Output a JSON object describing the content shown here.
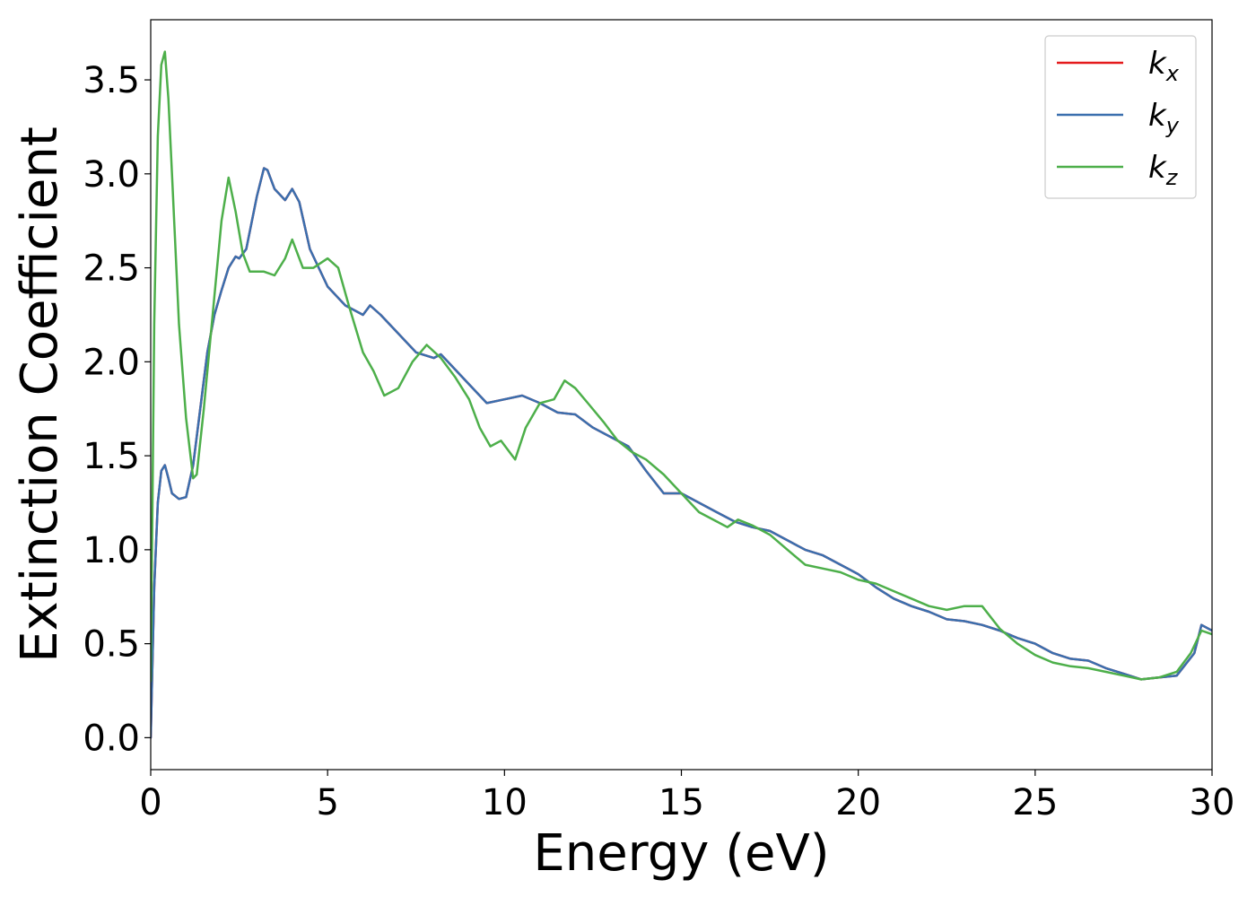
{
  "chart_data": {
    "type": "line",
    "title": "",
    "xlabel": "Energy (eV)",
    "ylabel": "Extinction Coefficient",
    "xlim": [
      0,
      30
    ],
    "ylim": [
      -0.17,
      3.82
    ],
    "xticks": [
      0,
      5,
      10,
      15,
      20,
      25,
      30
    ],
    "xtick_labels": [
      "0",
      "5",
      "10",
      "15",
      "20",
      "25",
      "30"
    ],
    "yticks": [
      0.0,
      0.5,
      1.0,
      1.5,
      2.0,
      2.5,
      3.0,
      3.5
    ],
    "ytick_labels": [
      "0.0",
      "0.5",
      "1.0",
      "1.5",
      "2.0",
      "2.5",
      "3.0",
      "3.5"
    ],
    "grid": false,
    "legend_position": "top-right",
    "series": [
      {
        "name": "k",
        "subscript": "x",
        "color": "#e41a1c",
        "x": [
          0,
          0.1,
          0.2,
          0.3,
          0.4,
          0.5,
          0.6,
          0.8,
          1.0,
          1.2,
          1.4,
          1.6,
          1.8,
          2.0,
          2.2,
          2.4,
          2.5,
          2.7,
          3.0,
          3.2,
          3.3,
          3.5,
          3.8,
          4.0,
          4.2,
          4.5,
          5.0,
          5.5,
          6.0,
          6.2,
          6.5,
          7.0,
          7.5,
          8.0,
          8.2,
          8.5,
          9.0,
          9.5,
          10.0,
          10.5,
          11.0,
          11.5,
          12.0,
          12.5,
          13.0,
          13.5,
          14.0,
          14.5,
          15.0,
          15.5,
          16.0,
          16.5,
          17.0,
          17.5,
          18.0,
          18.5,
          19.0,
          19.5,
          20.0,
          20.5,
          21.0,
          21.5,
          22.0,
          22.5,
          23.0,
          23.5,
          24.0,
          24.5,
          25.0,
          25.5,
          26.0,
          26.5,
          27.0,
          27.5,
          28.0,
          28.5,
          29.0,
          29.5,
          29.7,
          30.0
        ],
        "y": [
          0.0,
          0.8,
          1.25,
          1.42,
          1.45,
          1.38,
          1.3,
          1.27,
          1.28,
          1.45,
          1.75,
          2.05,
          2.25,
          2.38,
          2.5,
          2.56,
          2.55,
          2.6,
          2.88,
          3.03,
          3.02,
          2.92,
          2.86,
          2.92,
          2.85,
          2.6,
          2.4,
          2.3,
          2.25,
          2.3,
          2.25,
          2.15,
          2.05,
          2.02,
          2.04,
          1.98,
          1.88,
          1.78,
          1.8,
          1.82,
          1.78,
          1.73,
          1.72,
          1.65,
          1.6,
          1.55,
          1.42,
          1.3,
          1.3,
          1.25,
          1.2,
          1.15,
          1.12,
          1.1,
          1.05,
          1.0,
          0.97,
          0.92,
          0.87,
          0.8,
          0.74,
          0.7,
          0.67,
          0.63,
          0.62,
          0.6,
          0.57,
          0.53,
          0.5,
          0.45,
          0.42,
          0.41,
          0.37,
          0.34,
          0.31,
          0.32,
          0.33,
          0.45,
          0.6,
          0.57
        ]
      },
      {
        "name": "k",
        "subscript": "y",
        "color": "#3a6fae",
        "x": [
          0,
          0.1,
          0.2,
          0.3,
          0.4,
          0.5,
          0.6,
          0.8,
          1.0,
          1.2,
          1.4,
          1.6,
          1.8,
          2.0,
          2.2,
          2.4,
          2.5,
          2.7,
          3.0,
          3.2,
          3.3,
          3.5,
          3.8,
          4.0,
          4.2,
          4.5,
          5.0,
          5.5,
          6.0,
          6.2,
          6.5,
          7.0,
          7.5,
          8.0,
          8.2,
          8.5,
          9.0,
          9.5,
          10.0,
          10.5,
          11.0,
          11.5,
          12.0,
          12.5,
          13.0,
          13.5,
          14.0,
          14.5,
          15.0,
          15.5,
          16.0,
          16.5,
          17.0,
          17.5,
          18.0,
          18.5,
          19.0,
          19.5,
          20.0,
          20.5,
          21.0,
          21.5,
          22.0,
          22.5,
          23.0,
          23.5,
          24.0,
          24.5,
          25.0,
          25.5,
          26.0,
          26.5,
          27.0,
          27.5,
          28.0,
          28.5,
          29.0,
          29.5,
          29.7,
          30.0
        ],
        "y": [
          0.0,
          0.8,
          1.25,
          1.42,
          1.45,
          1.38,
          1.3,
          1.27,
          1.28,
          1.45,
          1.75,
          2.05,
          2.25,
          2.38,
          2.5,
          2.56,
          2.55,
          2.6,
          2.88,
          3.03,
          3.02,
          2.92,
          2.86,
          2.92,
          2.85,
          2.6,
          2.4,
          2.3,
          2.25,
          2.3,
          2.25,
          2.15,
          2.05,
          2.02,
          2.04,
          1.98,
          1.88,
          1.78,
          1.8,
          1.82,
          1.78,
          1.73,
          1.72,
          1.65,
          1.6,
          1.55,
          1.42,
          1.3,
          1.3,
          1.25,
          1.2,
          1.15,
          1.12,
          1.1,
          1.05,
          1.0,
          0.97,
          0.92,
          0.87,
          0.8,
          0.74,
          0.7,
          0.67,
          0.63,
          0.62,
          0.6,
          0.57,
          0.53,
          0.5,
          0.45,
          0.42,
          0.41,
          0.37,
          0.34,
          0.31,
          0.32,
          0.33,
          0.45,
          0.6,
          0.57
        ]
      },
      {
        "name": "k",
        "subscript": "z",
        "color": "#4daf4a",
        "x": [
          0,
          0.1,
          0.2,
          0.3,
          0.4,
          0.5,
          0.6,
          0.8,
          1.0,
          1.2,
          1.3,
          1.5,
          1.8,
          2.0,
          2.2,
          2.4,
          2.6,
          2.8,
          3.0,
          3.2,
          3.5,
          3.8,
          4.0,
          4.3,
          4.6,
          5.0,
          5.3,
          5.6,
          6.0,
          6.3,
          6.6,
          7.0,
          7.4,
          7.8,
          8.2,
          8.6,
          9.0,
          9.3,
          9.6,
          9.9,
          10.3,
          10.6,
          11.0,
          11.4,
          11.7,
          12.0,
          12.4,
          12.8,
          13.2,
          13.6,
          14.0,
          14.5,
          15.0,
          15.5,
          16.0,
          16.3,
          16.6,
          17.0,
          17.5,
          18.0,
          18.5,
          19.0,
          19.5,
          20.0,
          20.5,
          21.0,
          21.5,
          22.0,
          22.5,
          23.0,
          23.5,
          24.0,
          24.5,
          25.0,
          25.5,
          26.0,
          26.5,
          27.0,
          27.5,
          28.0,
          28.5,
          29.0,
          29.4,
          29.7,
          30.0
        ],
        "y": [
          0.3,
          2.2,
          3.2,
          3.58,
          3.65,
          3.4,
          3.0,
          2.2,
          1.7,
          1.38,
          1.4,
          1.75,
          2.35,
          2.75,
          2.98,
          2.8,
          2.58,
          2.48,
          2.48,
          2.48,
          2.46,
          2.55,
          2.65,
          2.5,
          2.5,
          2.55,
          2.5,
          2.3,
          2.05,
          1.95,
          1.82,
          1.86,
          2.0,
          2.09,
          2.02,
          1.92,
          1.8,
          1.65,
          1.55,
          1.58,
          1.48,
          1.65,
          1.78,
          1.8,
          1.9,
          1.86,
          1.77,
          1.68,
          1.58,
          1.52,
          1.48,
          1.4,
          1.3,
          1.2,
          1.15,
          1.12,
          1.16,
          1.13,
          1.08,
          1.0,
          0.92,
          0.9,
          0.88,
          0.84,
          0.82,
          0.78,
          0.74,
          0.7,
          0.68,
          0.7,
          0.7,
          0.58,
          0.5,
          0.44,
          0.4,
          0.38,
          0.37,
          0.35,
          0.33,
          0.31,
          0.32,
          0.35,
          0.45,
          0.57,
          0.55
        ]
      }
    ]
  }
}
